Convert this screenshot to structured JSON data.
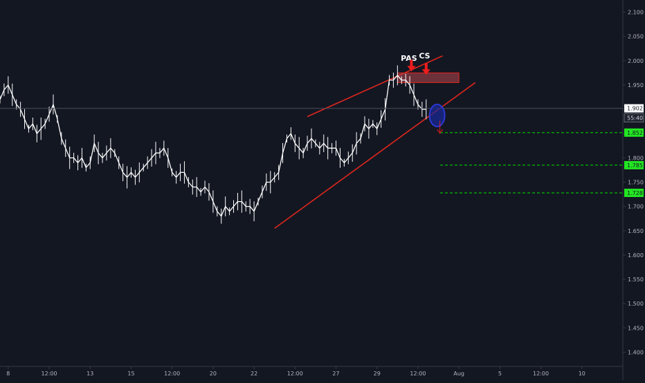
{
  "theme": {
    "background": "#131722",
    "axis_text": "#b2b5be",
    "axis_line": "#363a45",
    "candle": "#ffffff",
    "channel_line": "#e0261d",
    "target_line": "#00e600",
    "label_green": "#22e622",
    "price_label_bg": "#ffffff",
    "ellipse_stroke": "#2c39d6",
    "ellipse_fill": "#1a2a9a",
    "zone_fill": "#b8474f"
  },
  "chart_data": {
    "type": "line",
    "title": "",
    "xlabel": "",
    "ylabel": "",
    "ylim": [
      1.375,
      2.125
    ],
    "y_ticks": [
      "2.100",
      "2.050",
      "2.000",
      "1.950",
      "1.900",
      "1.850",
      "1.800",
      "1.750",
      "1.700",
      "1.650",
      "1.600",
      "1.550",
      "1.500",
      "1.450",
      "1.400"
    ],
    "y_tick_values": [
      2.1,
      2.05,
      2.0,
      1.95,
      1.9,
      1.85,
      1.8,
      1.75,
      1.7,
      1.65,
      1.6,
      1.55,
      1.5,
      1.45,
      1.4
    ],
    "x_ticks": [
      "8",
      "12:00",
      "13",
      "15",
      "12:00",
      "20",
      "22",
      "12:00",
      "27",
      "29",
      "12:00",
      "Aug",
      "5",
      "12:00",
      "10"
    ],
    "x_tick_index": [
      1,
      6,
      11,
      16,
      21,
      26,
      31,
      36,
      41,
      46,
      51,
      56,
      61,
      66,
      71
    ],
    "x_domain": [
      0,
      76
    ],
    "series": [
      {
        "x": [
          0,
          0.5,
          1,
          1.5,
          2,
          2.5,
          3,
          3.5,
          4,
          4.5,
          5,
          5.5,
          6,
          6.5,
          7,
          7.5,
          8,
          8.5,
          9,
          9.5,
          10,
          10.5,
          11,
          11.5,
          12,
          12.5,
          13,
          13.5,
          14,
          14.5,
          15,
          15.5,
          16,
          16.5,
          17,
          17.5,
          18,
          18.5,
          19,
          19.5,
          20,
          20.5,
          21,
          21.5,
          22,
          22.5,
          23,
          23.5,
          24,
          24.5,
          25,
          25.5,
          26,
          26.5,
          27,
          27.5,
          28,
          28.5,
          29,
          29.5,
          30,
          30.5,
          31,
          31.5,
          32,
          32.5,
          33,
          33.5,
          34,
          34.5,
          35,
          35.5,
          36,
          36.5,
          37,
          37.5,
          38,
          38.5,
          39,
          39.5,
          40,
          40.5,
          41,
          41.5,
          42,
          42.5,
          43,
          43.5,
          44,
          44.5,
          45,
          45.5,
          46,
          46.5,
          47,
          47.5,
          48,
          48.5,
          49,
          49.5,
          50,
          50.5,
          51,
          51.5,
          52
        ],
        "values": [
          1.92,
          1.94,
          1.95,
          1.93,
          1.91,
          1.9,
          1.88,
          1.86,
          1.87,
          1.85,
          1.86,
          1.87,
          1.89,
          1.91,
          1.88,
          1.84,
          1.82,
          1.8,
          1.8,
          1.79,
          1.8,
          1.78,
          1.79,
          1.83,
          1.81,
          1.8,
          1.81,
          1.82,
          1.81,
          1.79,
          1.77,
          1.76,
          1.77,
          1.76,
          1.77,
          1.78,
          1.79,
          1.8,
          1.81,
          1.81,
          1.82,
          1.8,
          1.77,
          1.76,
          1.77,
          1.77,
          1.75,
          1.74,
          1.74,
          1.73,
          1.74,
          1.73,
          1.71,
          1.69,
          1.68,
          1.7,
          1.69,
          1.7,
          1.71,
          1.71,
          1.7,
          1.7,
          1.69,
          1.71,
          1.73,
          1.75,
          1.75,
          1.76,
          1.77,
          1.81,
          1.84,
          1.85,
          1.83,
          1.82,
          1.81,
          1.83,
          1.84,
          1.83,
          1.82,
          1.83,
          1.82,
          1.82,
          1.82,
          1.8,
          1.79,
          1.8,
          1.81,
          1.83,
          1.84,
          1.87,
          1.86,
          1.87,
          1.86,
          1.88,
          1.9,
          1.96,
          1.96,
          1.97,
          1.96,
          1.96,
          1.95,
          1.93,
          1.91,
          1.9,
          1.9
        ]
      }
    ],
    "annotations": {
      "labels": [
        {
          "text": "PAS",
          "x": 49.9,
          "y": 2.0
        },
        {
          "text": "CS",
          "x": 51.8,
          "y": 2.005
        }
      ],
      "channel_upper": [
        [
          37.5,
          1.885
        ],
        [
          54,
          2.01
        ]
      ],
      "channel_lower": [
        [
          33.5,
          1.655
        ],
        [
          58,
          1.955
        ]
      ],
      "resistance_zone": {
        "x": [
          48.5,
          56
        ],
        "y": [
          1.955,
          1.975
        ]
      },
      "target_levels": [
        1.852,
        1.785,
        1.728
      ],
      "current_price": 1.902,
      "current_price_label": "1.902",
      "countdown_label": "55:40",
      "ellipse_center": [
        53,
        1.893
      ]
    }
  }
}
